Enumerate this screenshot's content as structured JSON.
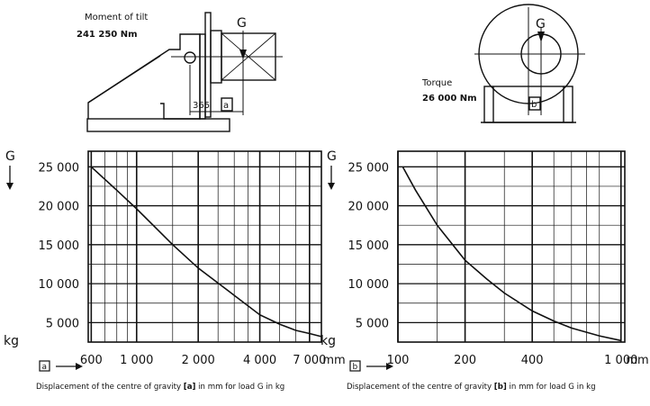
{
  "diagrams": {
    "left": {
      "label_line1": "Moment of tilt",
      "label_line2": "241 250 Nm",
      "g_label": "G",
      "dim_value": "365",
      "dim_box": "a"
    },
    "right": {
      "label_line1": "Torque",
      "label_line2": "26 000 Nm",
      "g_label": "G",
      "dim_box": "b"
    }
  },
  "chart_data": [
    {
      "type": "line",
      "x_scale": "log",
      "y_axis_label": "G",
      "y_unit": "kg",
      "x_unit": "mm",
      "xlim": [
        580,
        8000
      ],
      "ylim": [
        2500,
        27000
      ],
      "y_ticks": [
        {
          "value": 25000,
          "label": "25 000"
        },
        {
          "value": 20000,
          "label": "20 000"
        },
        {
          "value": 15000,
          "label": "15 000"
        },
        {
          "value": 10000,
          "label": "10 000"
        },
        {
          "value": 5000,
          "label": "5 000"
        }
      ],
      "x_ticks": [
        {
          "value": 600,
          "label": "600"
        },
        {
          "value": 1000,
          "label": "1 000"
        },
        {
          "value": 2000,
          "label": "2 000"
        },
        {
          "value": 4000,
          "label": "4 000"
        },
        {
          "value": 7000,
          "label": "7 000"
        }
      ],
      "grid": true,
      "axis_box_label": "a",
      "caption_before": "Displacement of the centre of gravity ",
      "caption_box": "a",
      "caption_after": " in mm for load G in kg",
      "series": [
        {
          "x": [
            600,
            800,
            1000,
            1500,
            2000,
            3000,
            4000,
            5000,
            6000,
            7000,
            8000
          ],
          "y": [
            25000,
            22000,
            19600,
            15000,
            12000,
            8500,
            6000,
            4800,
            4000,
            3600,
            3200
          ]
        }
      ]
    },
    {
      "type": "line",
      "x_scale": "log",
      "y_axis_label": "G",
      "y_unit": "kg",
      "x_unit": "mm",
      "xlim": [
        100,
        1040
      ],
      "ylim": [
        2500,
        27000
      ],
      "y_ticks": [
        {
          "value": 25000,
          "label": "25 000"
        },
        {
          "value": 20000,
          "label": "20 000"
        },
        {
          "value": 15000,
          "label": "15 000"
        },
        {
          "value": 10000,
          "label": "10 000"
        },
        {
          "value": 5000,
          "label": "5 000"
        }
      ],
      "x_ticks": [
        {
          "value": 100,
          "label": "100"
        },
        {
          "value": 200,
          "label": "200"
        },
        {
          "value": 400,
          "label": "400"
        },
        {
          "value": 1000,
          "label": "1 000"
        }
      ],
      "grid": true,
      "axis_box_label": "b",
      "caption_before": "Displacement of the centre of gravity ",
      "caption_box": "b",
      "caption_after": " in mm for load G in kg",
      "series": [
        {
          "x": [
            105,
            120,
            150,
            200,
            250,
            300,
            400,
            500,
            600,
            800,
            1000
          ],
          "y": [
            25000,
            22000,
            17500,
            13000,
            10600,
            8800,
            6500,
            5200,
            4300,
            3300,
            2700
          ]
        }
      ]
    }
  ]
}
